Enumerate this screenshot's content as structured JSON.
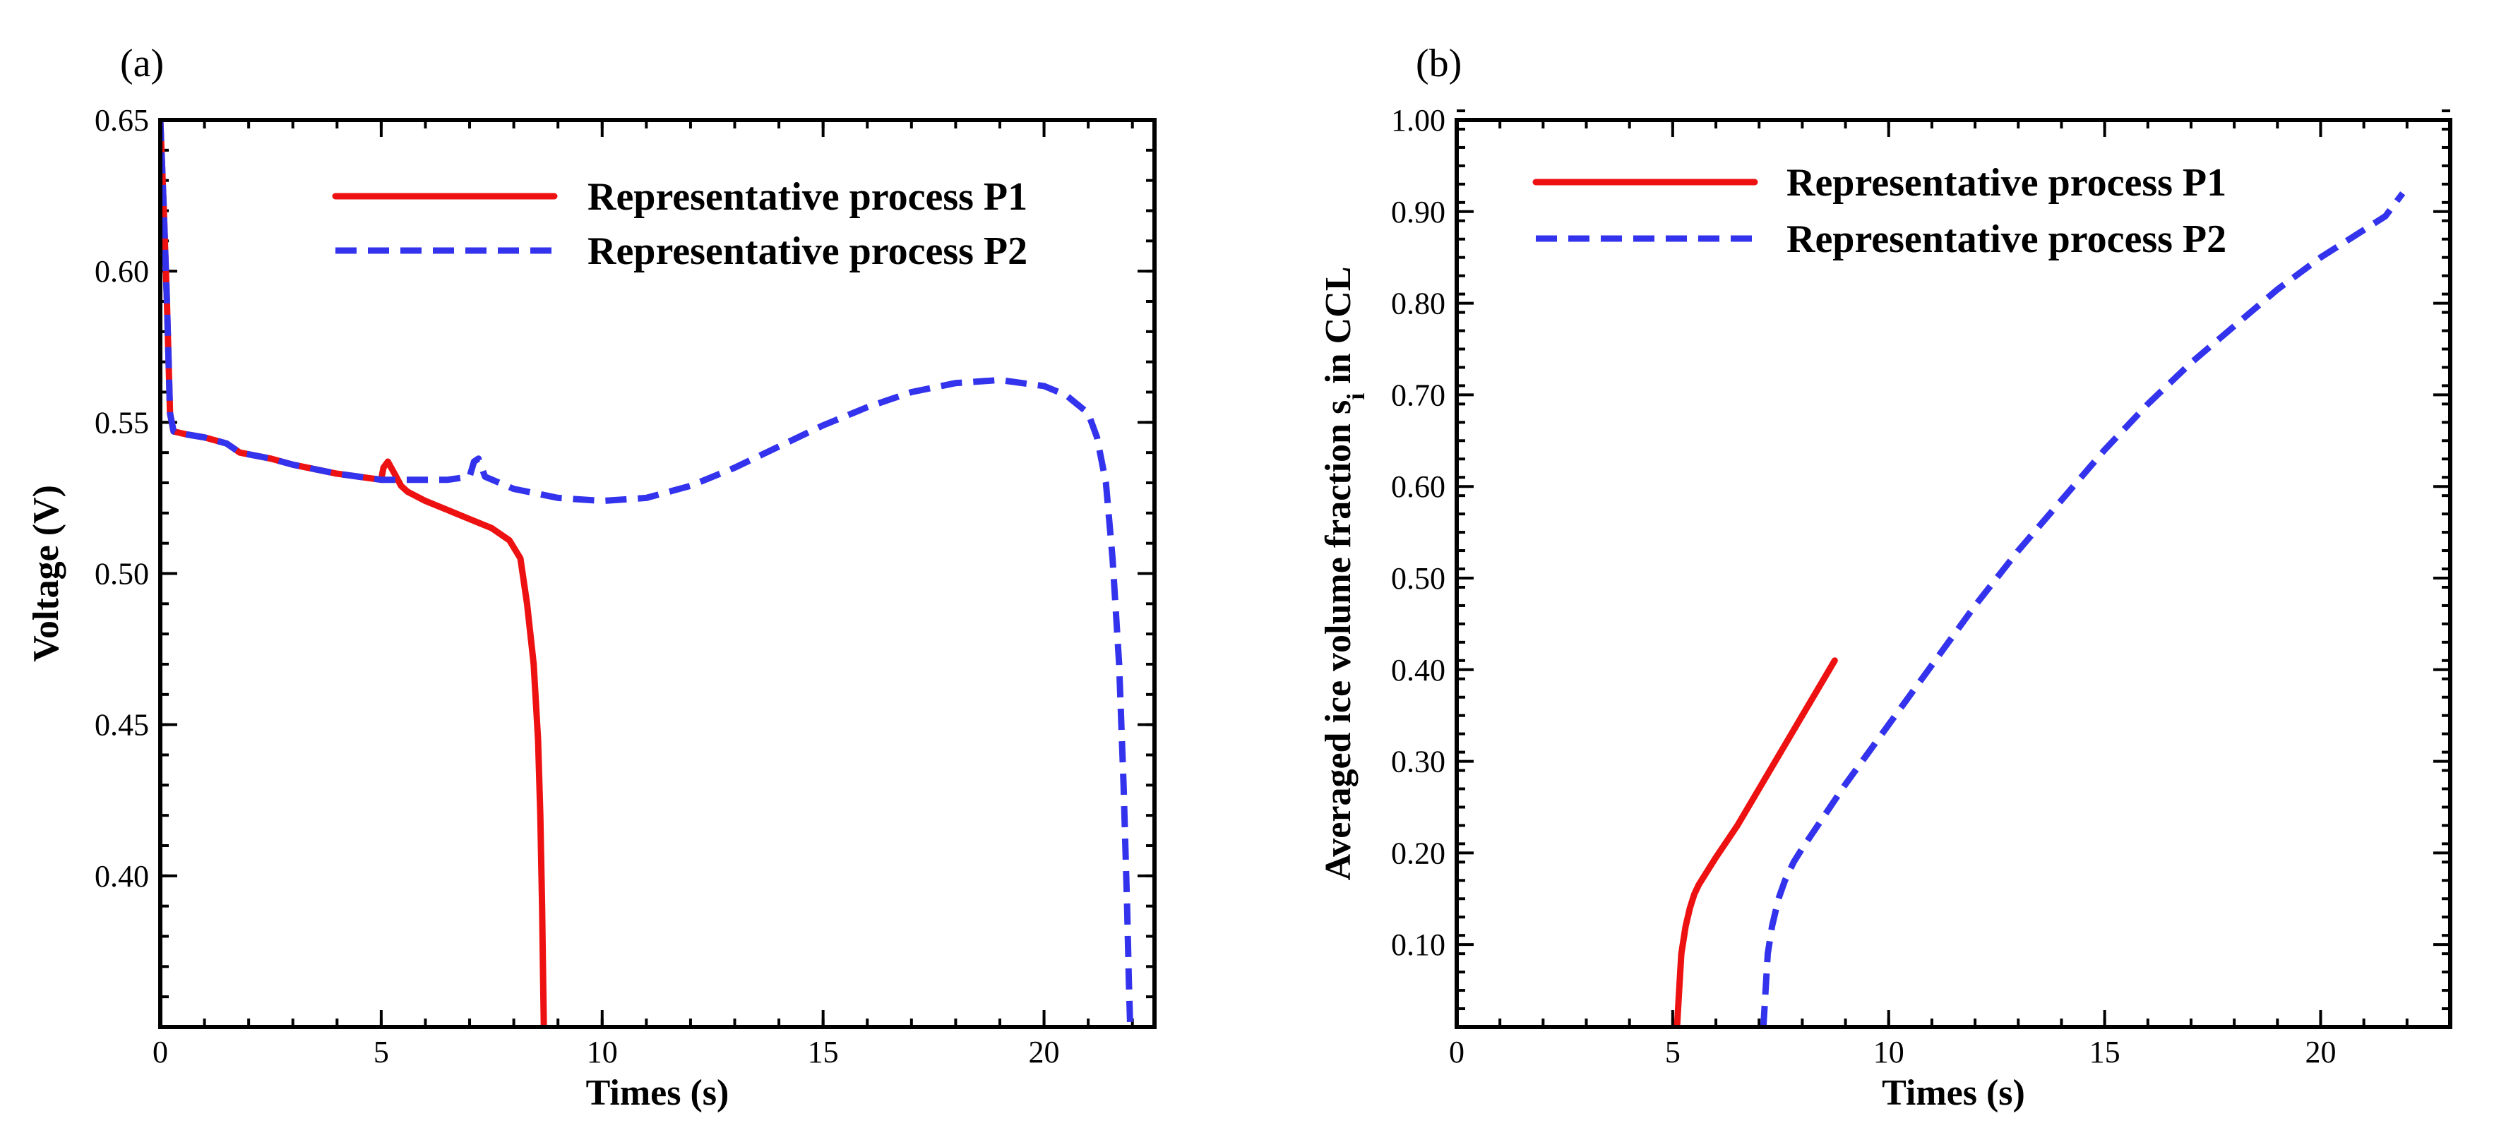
{
  "chart_data": [
    {
      "type": "line",
      "panel_label": "(a)",
      "title": "",
      "xlabel": "Times (s)",
      "ylabel": "Voltage (V)",
      "xlim": [
        0,
        22.5
      ],
      "ylim": [
        0.35,
        0.65
      ],
      "xticks": [
        0,
        5,
        10,
        15,
        20
      ],
      "xtick_labels": [
        "0",
        "5",
        "10",
        "15",
        "20"
      ],
      "yticks": [
        0.4,
        0.45,
        0.5,
        0.55,
        0.6,
        0.65
      ],
      "ytick_labels": [
        "0.40",
        "0.45",
        "0.50",
        "0.55",
        "0.60",
        "0.65"
      ],
      "x_minor_step": 1,
      "y_minor_step": 0.01,
      "legend_position": "top-right",
      "series": [
        {
          "name": "Representative process P1",
          "style": "solid",
          "color": "#ee1111",
          "x": [
            0.0,
            0.08,
            0.15,
            0.22,
            0.3,
            0.6,
            1.0,
            1.5,
            1.8,
            2.5,
            3.0,
            4.0,
            4.5,
            5.0,
            5.05,
            5.15,
            5.3,
            5.45,
            5.6,
            6.0,
            6.5,
            7.0,
            7.5,
            7.9,
            8.15,
            8.3,
            8.45,
            8.55,
            8.6,
            8.64,
            8.66,
            8.68
          ],
          "y": [
            0.65,
            0.62,
            0.59,
            0.553,
            0.547,
            0.546,
            0.545,
            0.543,
            0.54,
            0.538,
            0.536,
            0.533,
            0.532,
            0.531,
            0.535,
            0.537,
            0.533,
            0.529,
            0.527,
            0.524,
            0.521,
            0.518,
            0.515,
            0.511,
            0.505,
            0.49,
            0.47,
            0.445,
            0.42,
            0.39,
            0.37,
            0.35
          ]
        },
        {
          "name": "Representative process P2",
          "style": "dashed",
          "color": "#3333ee",
          "x": [
            0.0,
            0.08,
            0.15,
            0.22,
            0.3,
            0.6,
            1.0,
            1.5,
            1.8,
            2.5,
            3.0,
            4.0,
            5.0,
            5.5,
            6.0,
            6.5,
            7.0,
            7.1,
            7.2,
            7.35,
            8.0,
            9.0,
            10.0,
            11.0,
            12.0,
            13.0,
            14.0,
            15.0,
            16.0,
            17.0,
            18.0,
            19.0,
            20.0,
            20.5,
            21.0,
            21.2,
            21.4,
            21.55,
            21.7,
            21.8,
            21.88,
            21.92,
            21.95
          ],
          "y": [
            0.65,
            0.62,
            0.59,
            0.553,
            0.547,
            0.546,
            0.545,
            0.543,
            0.54,
            0.538,
            0.536,
            0.533,
            0.531,
            0.531,
            0.531,
            0.531,
            0.532,
            0.537,
            0.538,
            0.532,
            0.528,
            0.525,
            0.524,
            0.525,
            0.529,
            0.535,
            0.542,
            0.549,
            0.555,
            0.56,
            0.563,
            0.564,
            0.562,
            0.559,
            0.553,
            0.545,
            0.53,
            0.505,
            0.47,
            0.43,
            0.39,
            0.365,
            0.35
          ]
        }
      ]
    },
    {
      "type": "line",
      "panel_label": "(b)",
      "title": "",
      "xlabel": "Times (s)",
      "ylabel": "Averaged ice volume fraction s",
      "ylabel_sub": "i",
      "ylabel_suffix": " in CCL",
      "xlim": [
        0,
        23
      ],
      "ylim": [
        0.01,
        1.0
      ],
      "xticks": [
        0,
        5,
        10,
        15,
        20
      ],
      "xtick_labels": [
        "0",
        "5",
        "10",
        "15",
        "20"
      ],
      "yticks": [
        0.1,
        0.2,
        0.3,
        0.4,
        0.5,
        0.6,
        0.7,
        0.8,
        0.9,
        1.0
      ],
      "ytick_labels": [
        "0.10",
        "0.20",
        "0.30",
        "0.40",
        "0.50",
        "0.60",
        "0.70",
        "0.80",
        "0.90",
        "1.00"
      ],
      "x_minor_step": 1,
      "y_minor_step": 0.02,
      "legend_position": "top-left",
      "series": [
        {
          "name": "Representative process P1",
          "style": "solid",
          "color": "#ee1111",
          "x": [
            5.1,
            5.15,
            5.2,
            5.3,
            5.4,
            5.5,
            5.6,
            5.8,
            6.0,
            6.5,
            7.0,
            7.5,
            8.0,
            8.5,
            8.75
          ],
          "y": [
            0.01,
            0.05,
            0.09,
            0.12,
            0.14,
            0.155,
            0.165,
            0.18,
            0.195,
            0.23,
            0.27,
            0.31,
            0.35,
            0.39,
            0.41
          ]
        },
        {
          "name": "Representative process P2",
          "style": "dashed",
          "color": "#3333ee",
          "x": [
            7.1,
            7.15,
            7.2,
            7.3,
            7.45,
            7.6,
            7.8,
            8.0,
            8.5,
            9.0,
            10.0,
            11.0,
            12.0,
            13.0,
            14.0,
            15.0,
            16.0,
            17.0,
            18.0,
            19.0,
            20.0,
            21.0,
            21.5,
            21.9
          ],
          "y": [
            0.01,
            0.05,
            0.09,
            0.12,
            0.15,
            0.17,
            0.19,
            0.205,
            0.24,
            0.275,
            0.34,
            0.405,
            0.47,
            0.53,
            0.585,
            0.64,
            0.69,
            0.735,
            0.775,
            0.815,
            0.85,
            0.88,
            0.895,
            0.92
          ]
        }
      ]
    }
  ]
}
